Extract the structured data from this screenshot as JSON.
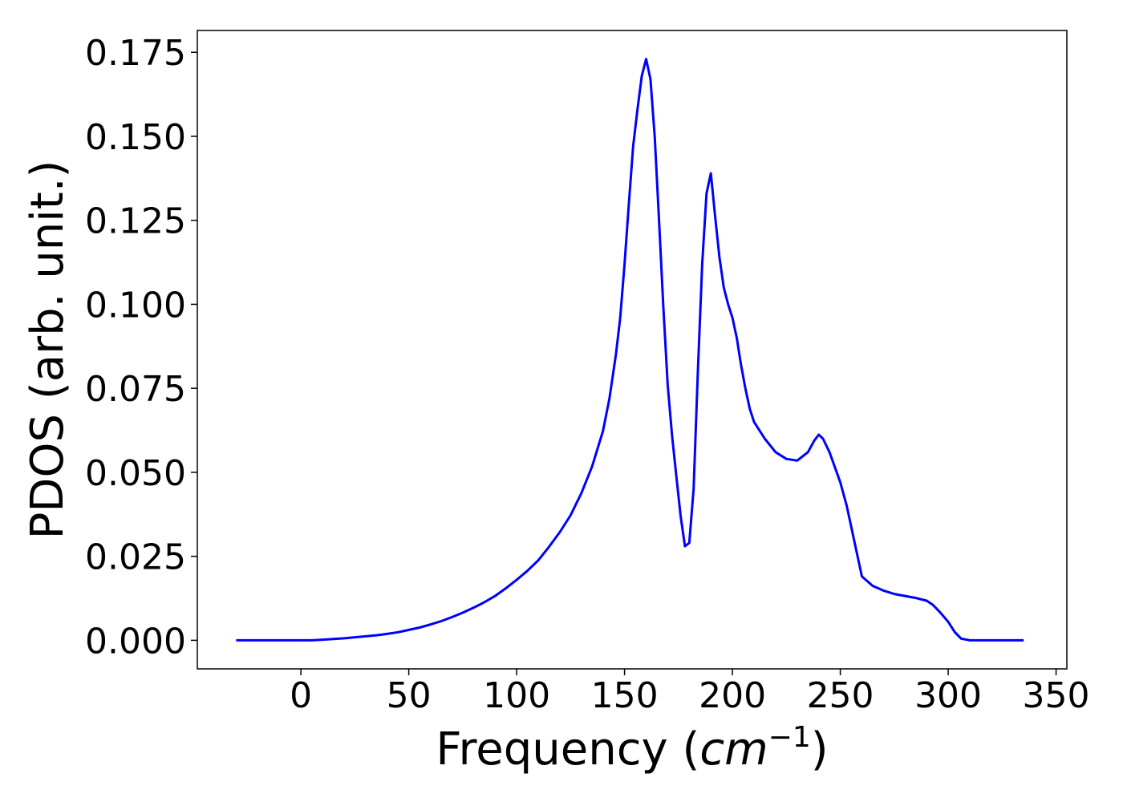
{
  "chart_data": {
    "type": "line",
    "title": "",
    "xlabel": "Frequency (cm⁻¹)",
    "xlabel_parts": {
      "prefix": "Frequency (",
      "italic": "cm",
      "sup": "−1",
      "suffix": ")"
    },
    "ylabel": "PDOS (arb. unit.)",
    "xlim": [
      -48,
      355
    ],
    "ylim": [
      -0.0085,
      0.1815
    ],
    "xticks": [
      0,
      50,
      100,
      150,
      200,
      250,
      300,
      350
    ],
    "xtick_labels": [
      "0",
      "50",
      "100",
      "150",
      "200",
      "250",
      "300",
      "350"
    ],
    "yticks": [
      0.0,
      0.025,
      0.05,
      0.075,
      0.1,
      0.125,
      0.15,
      0.175
    ],
    "ytick_labels": [
      "0.000",
      "0.025",
      "0.050",
      "0.075",
      "0.100",
      "0.125",
      "0.150",
      "0.175"
    ],
    "grid": false,
    "series": [
      {
        "color": "#0000ff",
        "x": [
          -30,
          0,
          5,
          10,
          15,
          20,
          25,
          30,
          35,
          40,
          45,
          50,
          55,
          60,
          65,
          70,
          75,
          80,
          85,
          90,
          95,
          100,
          105,
          110,
          115,
          120,
          125,
          130,
          135,
          140,
          143,
          146,
          148,
          150,
          152,
          154,
          156,
          158,
          160,
          162,
          164,
          166,
          168,
          170,
          172,
          174,
          176,
          178,
          180,
          182,
          184,
          186,
          188,
          190,
          192,
          194,
          196,
          198,
          200,
          202,
          204,
          206,
          208,
          210,
          215,
          220,
          225,
          230,
          235,
          238,
          240,
          242,
          245,
          250,
          253,
          256,
          258,
          260,
          265,
          270,
          275,
          280,
          285,
          290,
          293,
          296,
          300,
          303,
          306,
          310,
          315,
          320,
          325,
          330,
          335
        ],
        "y": [
          0.0,
          0.0,
          0.0,
          0.0002,
          0.0004,
          0.0006,
          0.0009,
          0.0012,
          0.0015,
          0.0019,
          0.0024,
          0.0031,
          0.0038,
          0.0047,
          0.0057,
          0.0069,
          0.0082,
          0.0097,
          0.0113,
          0.0132,
          0.0155,
          0.018,
          0.0207,
          0.0238,
          0.0278,
          0.0322,
          0.0372,
          0.0438,
          0.0518,
          0.0623,
          0.072,
          0.085,
          0.096,
          0.112,
          0.13,
          0.147,
          0.158,
          0.168,
          0.173,
          0.167,
          0.15,
          0.125,
          0.099,
          0.076,
          0.061,
          0.049,
          0.037,
          0.028,
          0.029,
          0.045,
          0.08,
          0.112,
          0.133,
          0.139,
          0.126,
          0.114,
          0.105,
          0.1,
          0.096,
          0.09,
          0.082,
          0.075,
          0.069,
          0.065,
          0.06,
          0.056,
          0.054,
          0.0535,
          0.056,
          0.0595,
          0.0612,
          0.06,
          0.056,
          0.047,
          0.04,
          0.031,
          0.025,
          0.019,
          0.0162,
          0.0148,
          0.0138,
          0.0132,
          0.0126,
          0.0118,
          0.0105,
          0.0085,
          0.0055,
          0.0025,
          0.0005,
          0.0,
          0.0,
          0.0,
          0.0,
          0.0,
          0.0
        ]
      }
    ]
  }
}
